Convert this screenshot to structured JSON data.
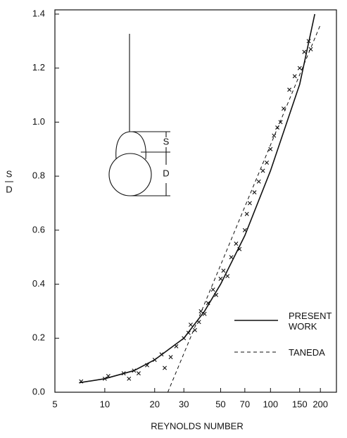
{
  "chart_data": {
    "type": "line",
    "ylabel": {
      "numerator": "S",
      "denominator": "D"
    },
    "xlabel": "REYNOLDS NUMBER",
    "xscale": "log",
    "xlim": [
      5,
      250
    ],
    "ylim": [
      0,
      1.4
    ],
    "xticks": [
      5,
      10,
      20,
      30,
      50,
      70,
      100,
      150,
      200
    ],
    "yticks": [
      {
        "value": 0,
        "label": "0.0"
      },
      0.2,
      0.4,
      0.6,
      0.8,
      {
        "value": 1,
        "label": "1.0"
      },
      1.2,
      1.4
    ],
    "series": [
      {
        "name": "PRESENT WORK",
        "color": "#111111",
        "dash": "solid",
        "x": [
          7,
          10,
          15,
          20,
          30,
          40,
          50,
          70,
          100,
          150,
          185
        ],
        "values": [
          0.035,
          0.05,
          0.08,
          0.12,
          0.2,
          0.3,
          0.4,
          0.58,
          0.82,
          1.14,
          1.4
        ]
      },
      {
        "name": "TANEDA",
        "color": "#111111",
        "dash": "dashed",
        "x": [
          24,
          200
        ],
        "values": [
          0,
          1.36
        ]
      }
    ],
    "points": {
      "color": "#111111",
      "x": [
        7.2,
        10,
        10.5,
        13,
        14,
        15,
        16,
        18,
        20,
        22,
        23,
        25,
        27,
        30,
        32,
        33,
        35,
        37,
        38,
        40,
        42,
        45,
        47,
        50,
        52,
        55,
        58,
        62,
        65,
        70,
        72,
        75,
        80,
        85,
        90,
        95,
        100,
        105,
        110,
        115,
        120,
        130,
        140,
        150,
        160,
        170,
        175
      ],
      "y": [
        0.04,
        0.05,
        0.06,
        0.07,
        0.05,
        0.08,
        0.07,
        0.1,
        0.12,
        0.14,
        0.09,
        0.13,
        0.17,
        0.2,
        0.22,
        0.25,
        0.23,
        0.26,
        0.3,
        0.29,
        0.33,
        0.38,
        0.36,
        0.42,
        0.45,
        0.43,
        0.5,
        0.55,
        0.53,
        0.6,
        0.66,
        0.7,
        0.74,
        0.78,
        0.82,
        0.85,
        0.9,
        0.95,
        0.98,
        1.0,
        1.05,
        1.12,
        1.17,
        1.2,
        1.26,
        1.3,
        1.27
      ]
    },
    "annotations": {
      "gap": "S",
      "diameter": "D"
    }
  }
}
